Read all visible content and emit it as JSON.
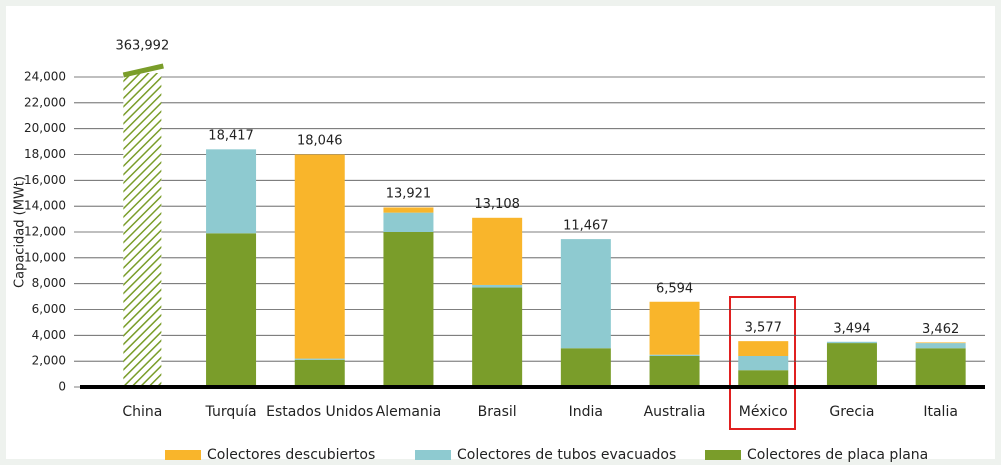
{
  "chart_data": {
    "type": "stacked-bar",
    "y_label": "Capacidad (MWt)",
    "categories": [
      "China",
      "Turquía",
      "Estados Unidos",
      "Alemania",
      "Brasil",
      "India",
      "Australia",
      "México",
      "Grecia",
      "Italia"
    ],
    "series": [
      {
        "name": "Colectores descubiertos",
        "color": "#f9b52b",
        "values": [
          null,
          0,
          15800,
          400,
          5200,
          0,
          4100,
          1150,
          0,
          50
        ]
      },
      {
        "name": "Colectores de tubos evacuados",
        "color": "#8ecad0",
        "values": [
          null,
          6500,
          100,
          1500,
          200,
          8450,
          100,
          1100,
          100,
          400
        ]
      },
      {
        "name": "Colectores de placa plana",
        "color": "#7a9d2a",
        "values": [
          null,
          11900,
          2100,
          12000,
          7700,
          3000,
          2400,
          1300,
          3400,
          3000
        ]
      }
    ],
    "totals": {
      "values": [
        363992,
        18417,
        18046,
        13921,
        13108,
        11467,
        6594,
        3577,
        3494,
        3462
      ],
      "value_labels": [
        "363,992",
        "18,417",
        "18,046",
        "13,921",
        "13,108",
        "11,467",
        "6,594",
        "3,577",
        "3,494",
        "3,462"
      ]
    },
    "ylim": [
      0,
      24000
    ],
    "yticks": [
      0,
      {
        "value": 2000,
        "label": "2,000"
      },
      {
        "value": 4000,
        "label": "4,000"
      },
      {
        "value": 6000,
        "label": "6,000"
      },
      {
        "value": 8000,
        "label": "8,000"
      },
      {
        "value": 10000,
        "label": "10,000"
      },
      {
        "value": 12000,
        "label": "12,000"
      },
      {
        "value": 14000,
        "label": "14,000"
      },
      {
        "value": 16000,
        "label": "16,000"
      },
      {
        "value": 18000,
        "label": "18,000"
      },
      {
        "value": 20000,
        "label": "20,000"
      },
      {
        "value": 22000,
        "label": "22,000"
      },
      {
        "value": 24000,
        "label": "24,000"
      }
    ],
    "grid": true
  }
}
